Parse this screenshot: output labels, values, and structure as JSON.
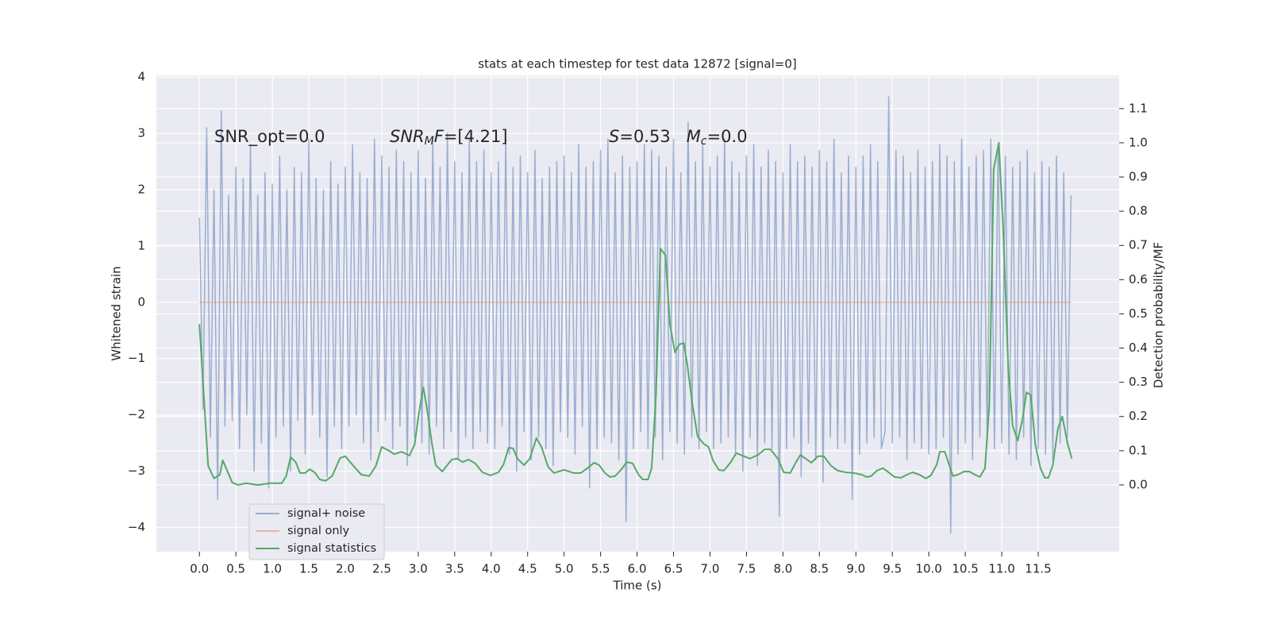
{
  "chart_data": {
    "type": "line",
    "title": "stats at each timestep for test data 12872 [signal=0]",
    "xlabel": "Time (s)",
    "ylabel": "Whitened strain",
    "y2label": "Detection probability/MF",
    "xlim": [
      -0.59,
      12.61
    ],
    "ylim": [
      -4.43,
      4.03
    ],
    "y2lim": [
      -0.195,
      1.197
    ],
    "xticks": [
      {
        "value": 0,
        "label": "0.0"
      },
      {
        "value": 0.5,
        "label": "0.5"
      },
      {
        "value": 1,
        "label": "1.0"
      },
      {
        "value": 1.5,
        "label": "1.5"
      },
      {
        "value": 2,
        "label": "2.0"
      },
      {
        "value": 2.5,
        "label": "2.5"
      },
      {
        "value": 3,
        "label": "3.0"
      },
      {
        "value": 3.5,
        "label": "3.5"
      },
      {
        "value": 4,
        "label": "4.0"
      },
      {
        "value": 4.5,
        "label": "4.5"
      },
      {
        "value": 5,
        "label": "5.0"
      },
      {
        "value": 5.5,
        "label": "5.5"
      },
      {
        "value": 6,
        "label": "6.0"
      },
      {
        "value": 6.5,
        "label": "6.5"
      },
      {
        "value": 7,
        "label": "7.0"
      },
      {
        "value": 7.5,
        "label": "7.5"
      },
      {
        "value": 8,
        "label": "8.0"
      },
      {
        "value": 8.5,
        "label": "8.5"
      },
      {
        "value": 9,
        "label": "9.0"
      },
      {
        "value": 9.5,
        "label": "9.5"
      },
      {
        "value": 10,
        "label": "10.0"
      },
      {
        "value": 10.5,
        "label": "10.5"
      },
      {
        "value": 11,
        "label": "11.0"
      },
      {
        "value": 11.5,
        "label": "11.5"
      }
    ],
    "yticks": [
      {
        "value": -4,
        "label": "−4"
      },
      {
        "value": -3,
        "label": "−3"
      },
      {
        "value": -2,
        "label": "−2"
      },
      {
        "value": -1,
        "label": "−1"
      },
      0,
      1,
      2,
      3,
      4
    ],
    "y2ticks": [
      {
        "value": 0,
        "label": "0.0"
      },
      {
        "value": 0.1,
        "label": "0.1"
      },
      {
        "value": 0.2,
        "label": "0.2"
      },
      {
        "value": 0.3,
        "label": "0.3"
      },
      {
        "value": 0.4,
        "label": "0.4"
      },
      {
        "value": 0.5,
        "label": "0.5"
      },
      {
        "value": 0.6,
        "label": "0.6"
      },
      {
        "value": 0.7,
        "label": "0.7"
      },
      {
        "value": 0.8,
        "label": "0.8"
      },
      {
        "value": 0.9,
        "label": "0.9"
      },
      {
        "value": 1.0,
        "label": "1.0"
      },
      {
        "value": 1.1,
        "label": "1.1"
      }
    ],
    "grid": true,
    "legend": "lower left",
    "annotations": [
      [
        {
          "text": "SNR_opt=0.0",
          "italic": false,
          "sub": false
        }
      ],
      [
        {
          "text": "SNR",
          "italic": true,
          "sub": false
        },
        {
          "text": "M",
          "italic": true,
          "sub": true
        },
        {
          "text": "F",
          "italic": true,
          "sub": false
        },
        {
          "text": "=[4.21]",
          "italic": false,
          "sub": false
        }
      ],
      [
        {
          "text": "S",
          "italic": true,
          "sub": false
        },
        {
          "text": "=0.53   ",
          "italic": false,
          "sub": false
        },
        {
          "text": "M",
          "italic": true,
          "sub": false
        },
        {
          "text": "c",
          "italic": true,
          "sub": true
        },
        {
          "text": "=0.0",
          "italic": false,
          "sub": false
        }
      ]
    ],
    "series": [
      {
        "name": "signal+ noise",
        "color": "#4c72b0",
        "opacity": 0.5,
        "x": [
          0,
          0.05,
          0.1,
          0.15,
          0.2,
          0.25,
          0.3,
          0.35,
          0.4,
          0.45,
          0.5,
          0.55,
          0.6,
          0.65,
          0.7,
          0.75,
          0.8,
          0.85,
          0.9,
          0.95,
          1,
          1.05,
          1.1,
          1.15,
          1.2,
          1.25,
          1.3,
          1.35,
          1.4,
          1.45,
          1.5,
          1.55,
          1.6,
          1.65,
          1.7,
          1.75,
          1.8,
          1.85,
          1.9,
          1.95,
          2,
          2.05,
          2.1,
          2.15,
          2.2,
          2.25,
          2.3,
          2.35,
          2.4,
          2.45,
          2.5,
          2.55,
          2.6,
          2.65,
          2.7,
          2.75,
          2.8,
          2.85,
          2.9,
          2.95,
          3,
          3.05,
          3.1,
          3.15,
          3.2,
          3.25,
          3.3,
          3.35,
          3.4,
          3.45,
          3.5,
          3.55,
          3.6,
          3.65,
          3.7,
          3.75,
          3.8,
          3.85,
          3.9,
          3.95,
          4,
          4.05,
          4.1,
          4.15,
          4.2,
          4.25,
          4.3,
          4.35,
          4.4,
          4.45,
          4.5,
          4.55,
          4.6,
          4.65,
          4.7,
          4.75,
          4.8,
          4.85,
          4.9,
          4.95,
          5,
          5.05,
          5.1,
          5.15,
          5.2,
          5.25,
          5.3,
          5.35,
          5.4,
          5.45,
          5.5,
          5.55,
          5.6,
          5.65,
          5.7,
          5.75,
          5.8,
          5.85,
          5.9,
          5.95,
          6,
          6.05,
          6.1,
          6.15,
          6.2,
          6.25,
          6.3,
          6.35,
          6.4,
          6.45,
          6.5,
          6.55,
          6.6,
          6.65,
          6.7,
          6.75,
          6.8,
          6.85,
          6.9,
          6.95,
          7,
          7.05,
          7.1,
          7.15,
          7.2,
          7.25,
          7.3,
          7.35,
          7.4,
          7.45,
          7.5,
          7.55,
          7.6,
          7.65,
          7.7,
          7.75,
          7.8,
          7.85,
          7.9,
          7.95,
          8,
          8.05,
          8.1,
          8.15,
          8.2,
          8.25,
          8.3,
          8.35,
          8.4,
          8.45,
          8.5,
          8.55,
          8.6,
          8.65,
          8.7,
          8.75,
          8.8,
          8.85,
          8.9,
          8.95,
          9,
          9.05,
          9.1,
          9.15,
          9.2,
          9.25,
          9.3,
          9.35,
          9.4,
          9.45,
          9.5,
          9.55,
          9.6,
          9.65,
          9.7,
          9.75,
          9.8,
          9.85,
          9.9,
          9.95,
          10,
          10.05,
          10.1,
          10.15,
          10.2,
          10.25,
          10.3,
          10.35,
          10.4,
          10.45,
          10.5,
          10.55,
          10.6,
          10.65,
          10.7,
          10.75,
          10.8,
          10.85,
          10.9,
          10.95,
          11,
          11.05,
          11.1,
          11.15,
          11.2,
          11.25,
          11.3,
          11.35,
          11.4,
          11.45,
          11.5,
          11.55,
          11.6,
          11.65,
          11.7,
          11.75,
          11.8,
          11.85,
          11.9,
          11.95
        ],
        "values": [
          1.5,
          -1.9,
          3.1,
          -2.4,
          2.0,
          -3.5,
          3.4,
          -2.2,
          1.9,
          -2.1,
          2.4,
          -2.6,
          2.2,
          -2.0,
          2.8,
          -3.0,
          1.9,
          -2.5,
          2.3,
          -3.3,
          2.1,
          -2.4,
          2.6,
          -2.2,
          2.0,
          -3.0,
          2.4,
          -2.1,
          2.3,
          -2.7,
          2.9,
          -2.0,
          2.2,
          -2.4,
          2.0,
          -3.1,
          2.5,
          -2.2,
          2.1,
          -2.6,
          2.4,
          -2.2,
          2.8,
          -2.0,
          2.3,
          -2.5,
          2.2,
          -2.8,
          2.9,
          -2.3,
          2.6,
          -2.1,
          2.4,
          -2.6,
          2.7,
          -2.2,
          2.5,
          -2.9,
          2.3,
          -2.4,
          2.7,
          -2.5,
          2.2,
          -2.7,
          2.9,
          -2.2,
          2.4,
          -2.6,
          3.0,
          -2.3,
          2.5,
          -2.8,
          2.3,
          -2.4,
          2.9,
          -2.6,
          2.5,
          -2.3,
          2.7,
          -2.5,
          2.3,
          -2.6,
          2.5,
          -2.2,
          2.9,
          -2.7,
          2.4,
          -3.0,
          2.6,
          -2.3,
          2.3,
          -2.8,
          2.7,
          -2.4,
          2.2,
          -2.6,
          2.4,
          -2.9,
          2.5,
          -2.3,
          2.6,
          -2.4,
          2.3,
          -2.7,
          2.8,
          -2.2,
          2.4,
          -3.3,
          2.5,
          -2.6,
          2.7,
          -2.4,
          2.9,
          -2.5,
          2.3,
          -2.8,
          2.6,
          -3.9,
          2.4,
          -2.6,
          2.5,
          -2.3,
          2.8,
          -2.6,
          2.7,
          -2.4,
          2.6,
          -2.8,
          2.4,
          -2.3,
          2.9,
          -2.5,
          2.3,
          -2.7,
          3.2,
          -2.4,
          2.5,
          -2.6,
          2.8,
          -2.3,
          2.4,
          -2.6,
          2.6,
          -2.5,
          2.9,
          -2.4,
          2.5,
          -2.7,
          2.3,
          -3.0,
          2.6,
          -2.4,
          2.8,
          -2.9,
          2.4,
          -2.5,
          2.7,
          -2.6,
          2.5,
          -3.8,
          2.3,
          -2.6,
          2.8,
          -2.4,
          2.5,
          -3.1,
          2.6,
          -2.5,
          2.4,
          -2.8,
          2.7,
          -3.2,
          2.5,
          -2.4,
          2.9,
          -2.6,
          2.3,
          -2.5,
          2.6,
          -3.5,
          2.4,
          -2.7,
          2.6,
          -2.5,
          2.8,
          -2.4,
          2.5,
          -2.6,
          -2.3,
          3.65,
          -2.5,
          2.7,
          -2.4,
          2.6,
          -2.8,
          2.3,
          -2.5,
          2.7,
          -2.6,
          2.4,
          -2.7,
          2.5,
          -2.6,
          2.8,
          -2.4,
          2.6,
          -4.1,
          2.5,
          -2.7,
          2.9,
          -2.5,
          2.4,
          -2.8,
          2.6,
          -2.4,
          2.7,
          -2.5,
          2.9,
          -2.6,
          2.8,
          -2.5,
          2.6,
          -2.7,
          2.4,
          -2.8,
          2.5,
          -2.4,
          2.7,
          -2.9,
          2.3,
          -2.6,
          2.5,
          -2.7,
          2.4,
          -2.8,
          2.6,
          -2.5,
          2.3,
          -2.4,
          1.9
        ]
      },
      {
        "name": "signal only",
        "color": "#dd8452",
        "opacity": 0.5,
        "x": [
          0,
          11.95
        ],
        "values": [
          0,
          0
        ]
      },
      {
        "name": "signal statistics",
        "color": "#55a868",
        "opacity": 1,
        "axis": "y2",
        "x": [
          0.0,
          0.12,
          0.2,
          0.28,
          0.32,
          0.45,
          0.53,
          0.64,
          0.8,
          0.97,
          1.13,
          1.19,
          1.25,
          1.32,
          1.38,
          1.45,
          1.51,
          1.58,
          1.65,
          1.73,
          1.82,
          1.93,
          2.0,
          2.11,
          2.22,
          2.33,
          2.42,
          2.5,
          2.6,
          2.67,
          2.77,
          2.88,
          2.95,
          3.01,
          3.07,
          3.12,
          3.19,
          3.24,
          3.33,
          3.38,
          3.46,
          3.53,
          3.61,
          3.69,
          3.78,
          3.88,
          3.99,
          4.1,
          4.17,
          4.24,
          4.3,
          4.36,
          4.45,
          4.53,
          4.62,
          4.69,
          4.78,
          4.86,
          5.0,
          5.13,
          5.23,
          5.32,
          5.41,
          5.48,
          5.56,
          5.63,
          5.7,
          5.78,
          5.86,
          5.94,
          6.02,
          6.08,
          6.15,
          6.2,
          6.26,
          6.32,
          6.39,
          6.45,
          6.52,
          6.58,
          6.64,
          6.69,
          6.76,
          6.83,
          6.91,
          6.98,
          7.04,
          7.12,
          7.19,
          7.28,
          7.36,
          7.44,
          7.55,
          7.66,
          7.75,
          7.83,
          7.93,
          8.01,
          8.1,
          8.17,
          8.24,
          8.31,
          8.39,
          8.48,
          8.56,
          8.66,
          8.75,
          8.86,
          8.97,
          9.08,
          9.15,
          9.21,
          9.29,
          9.37,
          9.46,
          9.53,
          9.62,
          9.7,
          9.78,
          9.87,
          9.96,
          10.03,
          10.11,
          10.15,
          10.22,
          10.27,
          10.33,
          10.4,
          10.48,
          10.56,
          10.63,
          10.7,
          10.77,
          10.83,
          10.89,
          10.96,
          11.02,
          11.09,
          11.15,
          11.22,
          11.28,
          11.34,
          11.4,
          11.46,
          11.53,
          11.59,
          11.64,
          11.7,
          11.77,
          11.83,
          11.9,
          11.96
        ],
        "values": [
          0.47,
          0.056,
          0.019,
          0.03,
          0.072,
          0.007,
          0.0,
          0.005,
          0.0,
          0.005,
          0.005,
          0.026,
          0.081,
          0.067,
          0.035,
          0.035,
          0.046,
          0.037,
          0.016,
          0.012,
          0.026,
          0.079,
          0.084,
          0.056,
          0.03,
          0.026,
          0.056,
          0.111,
          0.1,
          0.09,
          0.097,
          0.086,
          0.118,
          0.211,
          0.285,
          0.223,
          0.118,
          0.058,
          0.039,
          0.053,
          0.074,
          0.077,
          0.067,
          0.074,
          0.063,
          0.037,
          0.028,
          0.037,
          0.06,
          0.109,
          0.107,
          0.077,
          0.058,
          0.077,
          0.137,
          0.111,
          0.053,
          0.035,
          0.044,
          0.035,
          0.035,
          0.049,
          0.065,
          0.058,
          0.035,
          0.023,
          0.026,
          0.044,
          0.067,
          0.063,
          0.03,
          0.016,
          0.016,
          0.049,
          0.265,
          0.691,
          0.671,
          0.471,
          0.387,
          0.411,
          0.415,
          0.35,
          0.234,
          0.142,
          0.121,
          0.111,
          0.072,
          0.044,
          0.042,
          0.065,
          0.093,
          0.086,
          0.077,
          0.088,
          0.104,
          0.104,
          0.077,
          0.037,
          0.035,
          0.063,
          0.088,
          0.077,
          0.065,
          0.084,
          0.084,
          0.056,
          0.042,
          0.037,
          0.035,
          0.03,
          0.023,
          0.026,
          0.042,
          0.049,
          0.035,
          0.023,
          0.021,
          0.03,
          0.037,
          0.03,
          0.019,
          0.028,
          0.06,
          0.097,
          0.097,
          0.065,
          0.026,
          0.03,
          0.039,
          0.039,
          0.03,
          0.023,
          0.049,
          0.234,
          0.923,
          1.0,
          0.745,
          0.339,
          0.172,
          0.13,
          0.188,
          0.271,
          0.262,
          0.118,
          0.049,
          0.021,
          0.021,
          0.058,
          0.165,
          0.2,
          0.123,
          0.077
        ]
      }
    ]
  }
}
